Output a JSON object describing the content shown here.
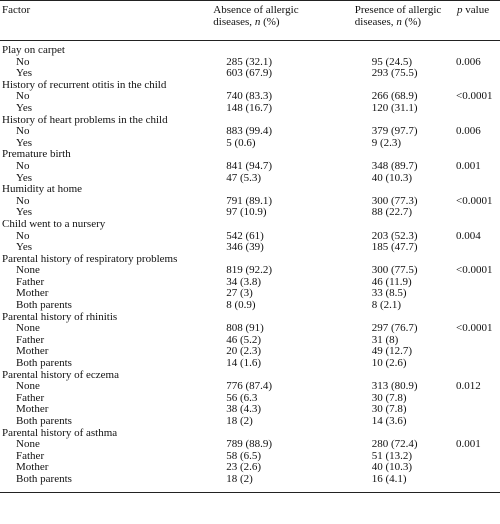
{
  "header": {
    "factor": "Factor",
    "absence_line1": "Absence of allergic",
    "absence_line2": "diseases, ",
    "absence_n": "n",
    "absence_tail": " (%)",
    "presence_line1": "Presence of allergic",
    "presence_line2": "diseases, ",
    "presence_n": "n",
    "presence_tail": " (%)",
    "p": "p",
    "p_tail": " value"
  },
  "groups": [
    {
      "factor": "Play on carpet",
      "rows": [
        {
          "label": "No",
          "absence": "285 (32.1)",
          "presence": "95 (24.5)",
          "p": "0.006"
        },
        {
          "label": "Yes",
          "absence": "603 (67.9)",
          "presence": "293 (75.5)",
          "p": ""
        }
      ]
    },
    {
      "factor": "History of recurrent otitis in the child",
      "rows": [
        {
          "label": "No",
          "absence": "740 (83.3)",
          "presence": "266 (68.9)",
          "p": "<0.0001"
        },
        {
          "label": "Yes",
          "absence": "148 (16.7)",
          "presence": "120 (31.1)",
          "p": ""
        }
      ]
    },
    {
      "factor": "History of heart problems in the child",
      "rows": [
        {
          "label": "No",
          "absence": "883 (99.4)",
          "presence": "379 (97.7)",
          "p": "0.006"
        },
        {
          "label": "Yes",
          "absence": "5 (0.6)",
          "presence": "9 (2.3)",
          "p": ""
        }
      ]
    },
    {
      "factor": "Premature birth",
      "rows": [
        {
          "label": "No",
          "absence": "841 (94.7)",
          "presence": "348 (89.7)",
          "p": "0.001"
        },
        {
          "label": "Yes",
          "absence": "47 (5.3)",
          "presence": "40 (10.3)",
          "p": ""
        }
      ]
    },
    {
      "factor": "Humidity at home",
      "rows": [
        {
          "label": "No",
          "absence": "791 (89.1)",
          "presence": "300 (77.3)",
          "p": "<0.0001"
        },
        {
          "label": "Yes",
          "absence": "97 (10.9)",
          "presence": "88 (22.7)",
          "p": ""
        }
      ]
    },
    {
      "factor": "Child went to a nursery",
      "rows": [
        {
          "label": "No",
          "absence": "542 (61)",
          "presence": "203 (52.3)",
          "p": "0.004"
        },
        {
          "label": "Yes",
          "absence": "346 (39)",
          "presence": "185 (47.7)",
          "p": ""
        }
      ]
    },
    {
      "factor": "Parental history of respiratory problems",
      "rows": [
        {
          "label": "None",
          "absence": "819 (92.2)",
          "presence": "300 (77.5)",
          "p": "<0.0001"
        },
        {
          "label": "Father",
          "absence": "34 (3.8)",
          "presence": "46 (11.9)",
          "p": ""
        },
        {
          "label": "Mother",
          "absence": "27 (3)",
          "presence": "33 (8.5)",
          "p": ""
        },
        {
          "label": "Both parents",
          "absence": "8 (0.9)",
          "presence": "8 (2.1)",
          "p": ""
        }
      ]
    },
    {
      "factor": "Parental history of rhinitis",
      "rows": [
        {
          "label": "None",
          "absence": "808 (91)",
          "presence": "297 (76.7)",
          "p": "<0.0001"
        },
        {
          "label": "Father",
          "absence": "46 (5.2)",
          "presence": "31 (8)",
          "p": ""
        },
        {
          "label": "Mother",
          "absence": "20 (2.3)",
          "presence": "49 (12.7)",
          "p": ""
        },
        {
          "label": "Both parents",
          "absence": "14 (1.6)",
          "presence": "10 (2.6)",
          "p": ""
        }
      ]
    },
    {
      "factor": "Parental history of eczema",
      "rows": [
        {
          "label": "None",
          "absence": "776 (87.4)",
          "presence": "313 (80.9)",
          "p": "0.012"
        },
        {
          "label": "Father",
          "absence": "56 (6.3",
          "presence": "30 (7.8)",
          "p": ""
        },
        {
          "label": "Mother",
          "absence": "38 (4.3)",
          "presence": "30 (7.8)",
          "p": ""
        },
        {
          "label": "Both parents",
          "absence": "18 (2)",
          "presence": "14 (3.6)",
          "p": ""
        }
      ]
    },
    {
      "factor": "Parental history of asthma",
      "rows": [
        {
          "label": "None",
          "absence": "789 (88.9)",
          "presence": "280 (72.4)",
          "p": "0.001"
        },
        {
          "label": "Father",
          "absence": "58 (6.5)",
          "presence": "51 (13.2)",
          "p": ""
        },
        {
          "label": "Mother",
          "absence": "23 (2.6)",
          "presence": "40 (10.3)",
          "p": ""
        },
        {
          "label": "Both parents",
          "absence": "18 (2)",
          "presence": "16 (4.1)",
          "p": ""
        }
      ]
    }
  ]
}
